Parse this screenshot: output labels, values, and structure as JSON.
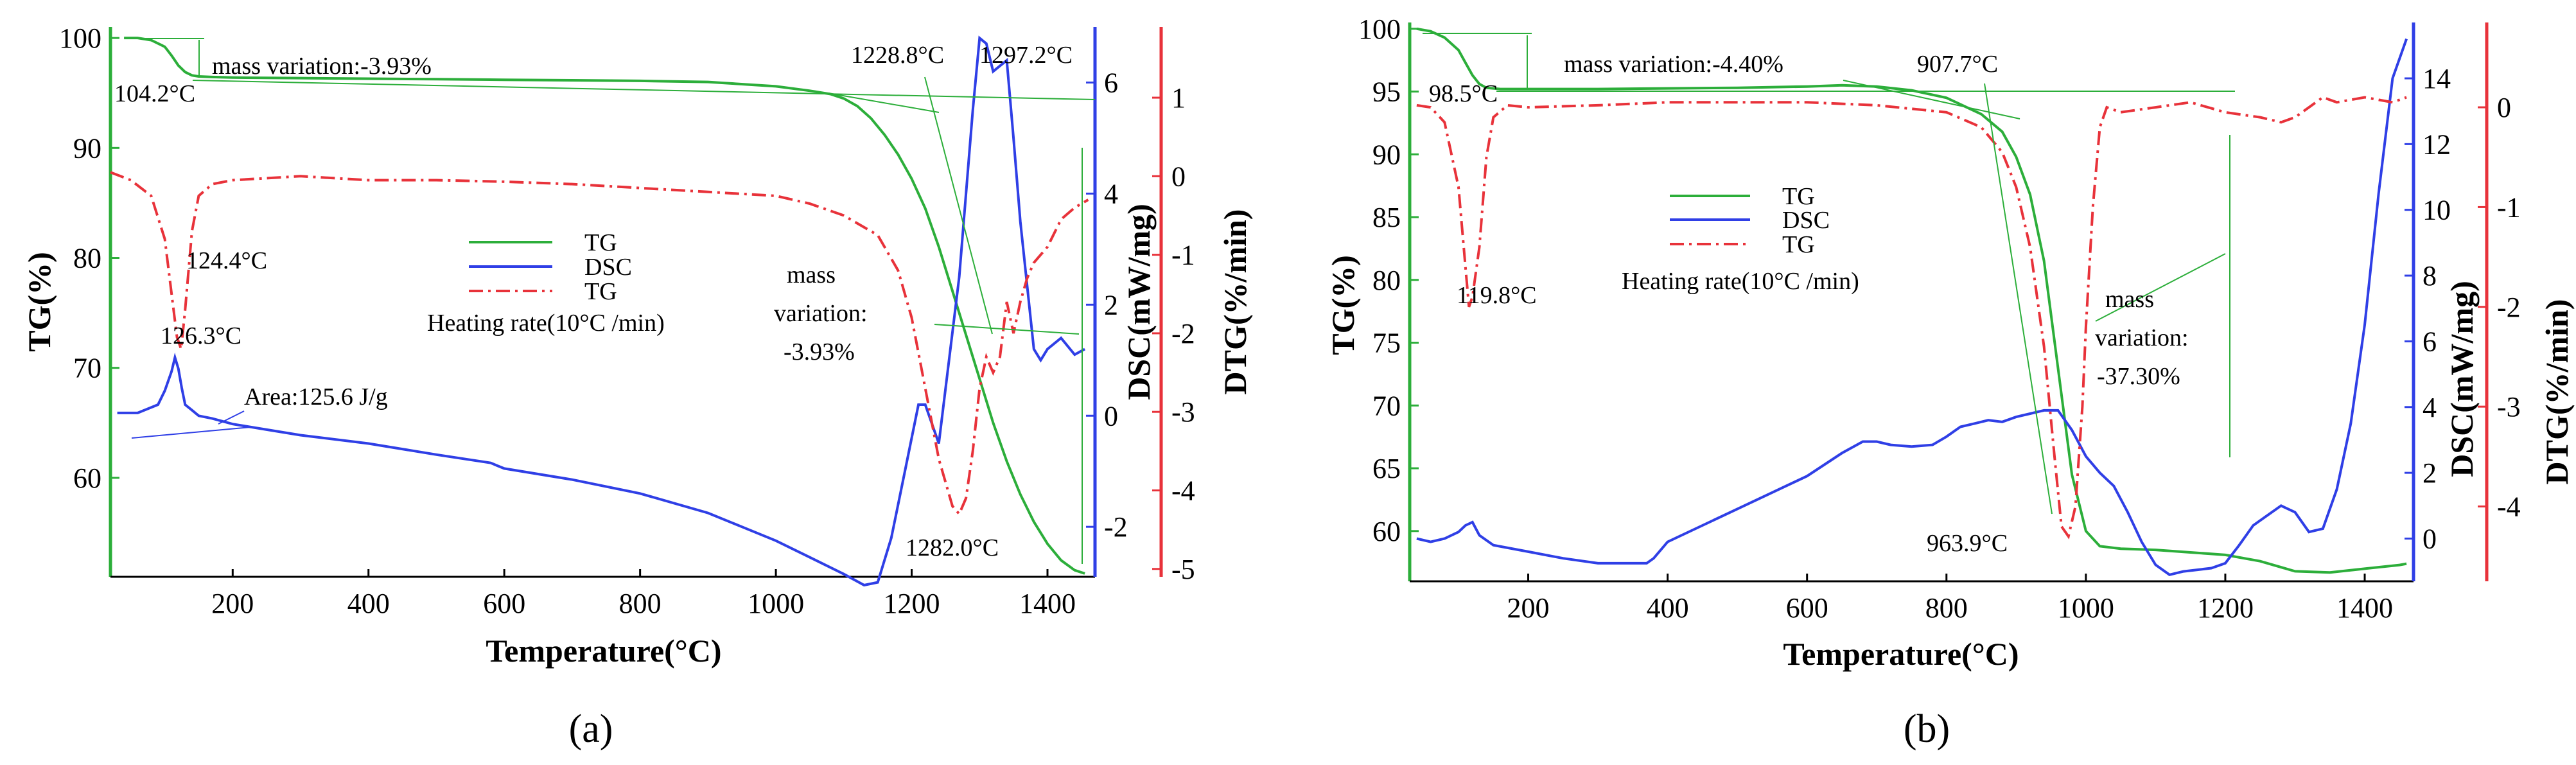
{
  "chart_data": [
    {
      "id": "a",
      "type": "line",
      "panel_label": "(a)",
      "xlabel": "Temperature(°C)",
      "xlim": [
        20,
        1470
      ],
      "xticks": [
        200,
        400,
        600,
        800,
        1000,
        1200,
        1400
      ],
      "axes": [
        {
          "key": "tg",
          "label": "TG(%)",
          "color": "#2cae3a",
          "range": [
            51,
            101
          ],
          "ticks": [
            60,
            70,
            80,
            90,
            100
          ],
          "side": "left"
        },
        {
          "key": "dsc",
          "label": "DSC(mW/mg)",
          "color": "#2f3fe6",
          "range": [
            -2.9,
            7.0
          ],
          "ticks": [
            -2,
            0,
            2,
            4,
            6
          ],
          "side": "right1"
        },
        {
          "key": "dtg",
          "label": "DTG(%/min)",
          "color": "#e8323a",
          "range": [
            -5.1,
            1.9
          ],
          "ticks": [
            -5,
            -4,
            -3,
            -2,
            -1,
            0,
            1
          ],
          "side": "right2"
        }
      ],
      "series": [
        {
          "name": "TG",
          "axis": "tg",
          "color": "#2cae3a",
          "style": "solid",
          "x": [
            40,
            60,
            80,
            100,
            110,
            120,
            130,
            140,
            150,
            170,
            200,
            300,
            400,
            500,
            600,
            700,
            800,
            900,
            1000,
            1050,
            1080,
            1100,
            1120,
            1140,
            1160,
            1180,
            1200,
            1220,
            1240,
            1260,
            1280,
            1300,
            1320,
            1340,
            1360,
            1380,
            1400,
            1420,
            1440,
            1455
          ],
          "y": [
            100,
            100,
            99.8,
            99.2,
            98.4,
            97.5,
            96.9,
            96.6,
            96.5,
            96.45,
            96.4,
            96.35,
            96.3,
            96.25,
            96.2,
            96.15,
            96.1,
            96,
            95.6,
            95.2,
            94.9,
            94.5,
            93.8,
            92.7,
            91.2,
            89.4,
            87.2,
            84.5,
            81,
            77,
            73,
            69,
            65,
            61.5,
            58.5,
            56,
            54,
            52.5,
            51.6,
            51.3
          ]
        },
        {
          "name": "DSC",
          "axis": "dsc",
          "color": "#2f3fe6",
          "style": "solid",
          "x": [
            30,
            60,
            90,
            100,
            110,
            115,
            120,
            125,
            130,
            140,
            150,
            170,
            200,
            250,
            300,
            400,
            500,
            580,
            590,
            600,
            700,
            800,
            900,
            950,
            1000,
            1050,
            1100,
            1130,
            1150,
            1170,
            1190,
            1210,
            1220,
            1240,
            1250,
            1270,
            1290,
            1300,
            1310,
            1320,
            1340,
            1350,
            1360,
            1380,
            1390,
            1400,
            1420,
            1440,
            1455
          ],
          "y": [
            0.05,
            0.05,
            0.2,
            0.45,
            0.8,
            1.05,
            0.85,
            0.5,
            0.2,
            0.1,
            0,
            -0.05,
            -0.15,
            -0.25,
            -0.35,
            -0.5,
            -0.7,
            -0.85,
            -0.9,
            -0.95,
            -1.15,
            -1.4,
            -1.75,
            -2,
            -2.25,
            -2.55,
            -2.85,
            -3.05,
            -3.0,
            -2.2,
            -1,
            0.2,
            0.2,
            -0.5,
            0.5,
            2.5,
            5.5,
            6.8,
            6.7,
            6.2,
            6.4,
            5.0,
            3.5,
            1.2,
            1.0,
            1.2,
            1.4,
            1.1,
            1.2
          ]
        },
        {
          "name": "TG",
          "axis": "dtg",
          "color": "#e8323a",
          "style": "dashdot",
          "x": [
            20,
            50,
            80,
            100,
            110,
            118,
            124,
            130,
            140,
            150,
            170,
            200,
            300,
            400,
            500,
            600,
            700,
            800,
            900,
            1000,
            1050,
            1100,
            1150,
            1180,
            1200,
            1220,
            1240,
            1260,
            1270,
            1280,
            1290,
            1300,
            1310,
            1320,
            1330,
            1340,
            1350,
            1360,
            1370,
            1380,
            1400,
            1420,
            1440,
            1460
          ],
          "y": [
            0.05,
            -0.05,
            -0.25,
            -0.8,
            -1.5,
            -2.05,
            -2.2,
            -1.7,
            -0.7,
            -0.25,
            -0.1,
            -0.05,
            0.0,
            -0.05,
            -0.05,
            -0.07,
            -0.1,
            -0.15,
            -0.2,
            -0.25,
            -0.35,
            -0.5,
            -0.75,
            -1.2,
            -1.8,
            -2.7,
            -3.6,
            -4.2,
            -4.3,
            -4.1,
            -3.5,
            -2.7,
            -2.3,
            -2.5,
            -2.3,
            -1.6,
            -2.0,
            -1.6,
            -1.3,
            -1.1,
            -0.9,
            -0.55,
            -0.4,
            -0.3
          ]
        }
      ],
      "legend": {
        "placement": "center",
        "entries": [
          {
            "label": "TG",
            "color": "#2cae3a",
            "style": "solid"
          },
          {
            "label": "DSC",
            "color": "#2f3fe6",
            "style": "solid"
          },
          {
            "label": "TG",
            "color": "#e8323a",
            "style": "dashdot"
          }
        ],
        "caption": "Heating rate(10°C /min)"
      },
      "annotations": {
        "t1": "104.2°C",
        "t2": "mass variation:-3.93%",
        "t3": "1228.8°C",
        "t4": "1297.2°C",
        "t5": "124.4°C",
        "t6": "126.3°C",
        "t7": "Area:125.6 J/g",
        "t8": "mass",
        "t9": "variation:",
        "t10": "-3.93%",
        "t11": "1282.0°C"
      }
    },
    {
      "id": "b",
      "type": "line",
      "panel_label": "(b)",
      "xlabel": "Temperature(°C)",
      "xlim": [
        30,
        1470
      ],
      "xticks": [
        200,
        400,
        600,
        800,
        1000,
        1200,
        1400
      ],
      "axes": [
        {
          "key": "tg",
          "label": "TG(%)",
          "color": "#2cae3a",
          "range": [
            56,
            100.5
          ],
          "ticks": [
            60,
            65,
            70,
            75,
            80,
            85,
            90,
            95,
            100
          ],
          "side": "left"
        },
        {
          "key": "dsc",
          "label": "DSC(mW/mg)",
          "color": "#2f3fe6",
          "range": [
            -1.3,
            15.7
          ],
          "ticks": [
            0,
            2,
            4,
            6,
            8,
            10,
            12,
            14
          ],
          "side": "right1"
        },
        {
          "key": "dtg",
          "label": "DTG(%/min)",
          "color": "#e8323a",
          "range": [
            -4.75,
            0.85
          ],
          "ticks": [
            -4,
            -3,
            -2,
            -1,
            0
          ],
          "side": "right2"
        }
      ],
      "series": [
        {
          "name": "TG",
          "axis": "tg",
          "color": "#2cae3a",
          "style": "solid",
          "x": [
            40,
            60,
            80,
            100,
            110,
            120,
            130,
            140,
            160,
            200,
            300,
            400,
            500,
            600,
            650,
            700,
            750,
            800,
            850,
            880,
            900,
            920,
            940,
            960,
            980,
            1000,
            1020,
            1050,
            1100,
            1150,
            1200,
            1250,
            1300,
            1350,
            1400,
            1450,
            1460
          ],
          "y": [
            100,
            99.8,
            99.3,
            98.3,
            97.3,
            96.3,
            95.6,
            95.3,
            95.2,
            95.2,
            95.2,
            95.25,
            95.3,
            95.4,
            95.5,
            95.4,
            95.1,
            94.5,
            93.2,
            91.8,
            89.8,
            86.8,
            81.5,
            73,
            64.5,
            60,
            58.8,
            58.6,
            58.5,
            58.3,
            58.1,
            57.6,
            56.8,
            56.7,
            57,
            57.3,
            57.4
          ]
        },
        {
          "name": "DSC",
          "axis": "dsc",
          "color": "#2f3fe6",
          "style": "solid",
          "x": [
            40,
            60,
            80,
            100,
            110,
            120,
            130,
            150,
            200,
            250,
            300,
            350,
            370,
            380,
            400,
            450,
            500,
            550,
            600,
            650,
            680,
            700,
            720,
            750,
            780,
            800,
            820,
            840,
            860,
            880,
            900,
            920,
            940,
            960,
            980,
            1000,
            1020,
            1040,
            1060,
            1080,
            1100,
            1120,
            1140,
            1160,
            1180,
            1200,
            1220,
            1240,
            1260,
            1280,
            1300,
            1320,
            1340,
            1360,
            1380,
            1400,
            1420,
            1440,
            1460
          ],
          "y": [
            0,
            -0.1,
            0,
            0.2,
            0.4,
            0.5,
            0.1,
            -0.2,
            -0.4,
            -0.6,
            -0.75,
            -0.75,
            -0.75,
            -0.6,
            -0.1,
            0.4,
            0.9,
            1.4,
            1.9,
            2.6,
            2.95,
            2.95,
            2.85,
            2.8,
            2.85,
            3.1,
            3.4,
            3.5,
            3.6,
            3.55,
            3.7,
            3.8,
            3.9,
            3.9,
            3.3,
            2.5,
            2.0,
            1.6,
            0.8,
            -0.1,
            -0.8,
            -1.1,
            -1.0,
            -0.95,
            -0.9,
            -0.75,
            -0.2,
            0.4,
            0.7,
            1.0,
            0.8,
            0.2,
            0.3,
            1.5,
            3.5,
            6.5,
            10.5,
            14,
            15.2
          ]
        },
        {
          "name": "TG",
          "axis": "dtg",
          "color": "#e8323a",
          "style": "dashdot",
          "x": [
            40,
            60,
            80,
            100,
            110,
            115,
            120,
            130,
            140,
            150,
            170,
            200,
            300,
            400,
            500,
            600,
            700,
            800,
            850,
            880,
            900,
            920,
            940,
            955,
            965,
            975,
            985,
            995,
            1000,
            1010,
            1020,
            1030,
            1050,
            1100,
            1150,
            1200,
            1250,
            1280,
            1300,
            1320,
            1340,
            1360,
            1400,
            1440,
            1460
          ],
          "y": [
            0.02,
            0,
            -0.15,
            -0.8,
            -1.6,
            -2.0,
            -1.9,
            -1.4,
            -0.5,
            -0.1,
            0.02,
            0,
            0.02,
            0.05,
            0.05,
            0.05,
            0.02,
            -0.05,
            -0.2,
            -0.45,
            -0.8,
            -1.4,
            -2.4,
            -3.5,
            -4.2,
            -4.3,
            -4.0,
            -3.0,
            -2.2,
            -1.0,
            -0.2,
            0,
            -0.05,
            0,
            0.05,
            -0.05,
            -0.1,
            -0.15,
            -0.1,
            0,
            0.1,
            0.05,
            0.1,
            0.05,
            0.1
          ]
        }
      ],
      "legend": {
        "placement": "center-left",
        "entries": [
          {
            "label": "TG",
            "color": "#2cae3a",
            "style": "solid"
          },
          {
            "label": "DSC",
            "color": "#2f3fe6",
            "style": "solid"
          },
          {
            "label": "TG",
            "color": "#e8323a",
            "style": "dashdot"
          }
        ],
        "caption": "Heating rate(10°C /min)"
      },
      "annotations": {
        "t1": "98.5°C",
        "t2": "mass variation:-4.40%",
        "t3": "907.7°C",
        "t4": "119.8°C",
        "t5": "mass",
        "t6": "variation:",
        "t7": "-37.30%",
        "t8": "963.9°C"
      }
    }
  ]
}
